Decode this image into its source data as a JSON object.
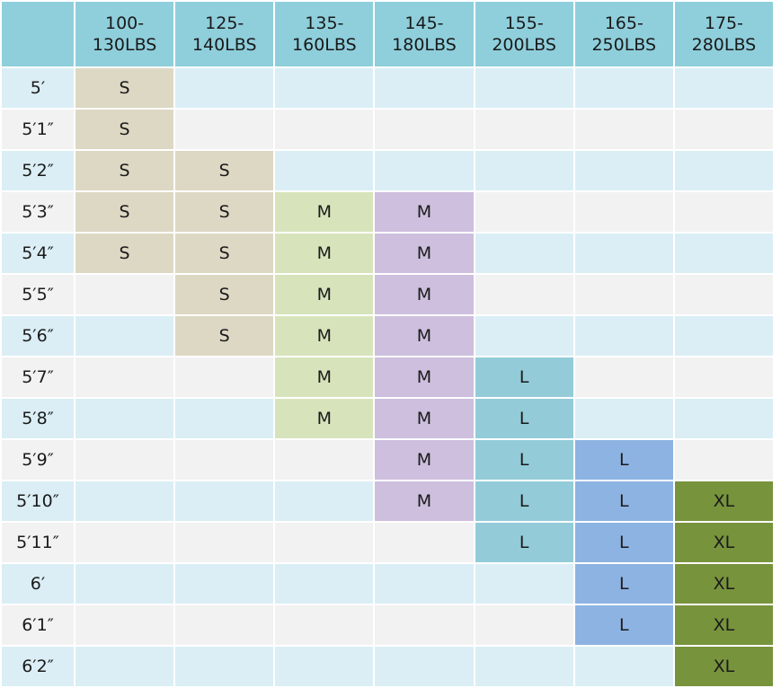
{
  "table": {
    "columns": [
      {
        "top": "100-",
        "bottom": "130LBS"
      },
      {
        "top": "125-",
        "bottom": "140LBS"
      },
      {
        "top": "135-",
        "bottom": "160LBS"
      },
      {
        "top": "145-",
        "bottom": "180LBS"
      },
      {
        "top": "155-",
        "bottom": "200LBS"
      },
      {
        "top": "165-",
        "bottom": "250LBS"
      },
      {
        "top": "175-",
        "bottom": "280LBS"
      }
    ],
    "rows": [
      {
        "height": "5′",
        "cells": [
          "S",
          "",
          "",
          "",
          "",
          "",
          ""
        ]
      },
      {
        "height": "5′1″",
        "cells": [
          "S",
          "",
          "",
          "",
          "",
          "",
          ""
        ]
      },
      {
        "height": "5′2″",
        "cells": [
          "S",
          "S",
          "",
          "",
          "",
          "",
          ""
        ]
      },
      {
        "height": "5′3″",
        "cells": [
          "S",
          "S",
          "M",
          "M",
          "",
          "",
          ""
        ]
      },
      {
        "height": "5′4″",
        "cells": [
          "S",
          "S",
          "M",
          "M",
          "",
          "",
          ""
        ]
      },
      {
        "height": "5′5″",
        "cells": [
          "",
          "S",
          "M",
          "M",
          "",
          "",
          ""
        ]
      },
      {
        "height": "5′6″",
        "cells": [
          "",
          "S",
          "M",
          "M",
          "",
          "",
          ""
        ]
      },
      {
        "height": "5′7″",
        "cells": [
          "",
          "",
          "M",
          "M",
          "L",
          "",
          ""
        ]
      },
      {
        "height": "5′8″",
        "cells": [
          "",
          "",
          "M",
          "M",
          "L",
          "",
          ""
        ]
      },
      {
        "height": "5′9″",
        "cells": [
          "",
          "",
          "",
          "M",
          "L",
          "L",
          ""
        ]
      },
      {
        "height": "5′10″",
        "cells": [
          "",
          "",
          "",
          "M",
          "L",
          "L",
          "XL"
        ]
      },
      {
        "height": "5′11″",
        "cells": [
          "",
          "",
          "",
          "",
          "L",
          "L",
          "XL"
        ]
      },
      {
        "height": "6′",
        "cells": [
          "",
          "",
          "",
          "",
          "",
          "L",
          "XL"
        ]
      },
      {
        "height": "6′1″",
        "cells": [
          "",
          "",
          "",
          "",
          "",
          "L",
          "XL"
        ]
      },
      {
        "height": "6′2″",
        "cells": [
          "",
          "",
          "",
          "",
          "",
          "",
          "XL"
        ]
      }
    ]
  },
  "colors": {
    "header": "#8fcfdc",
    "row_odd": "#dbeef5",
    "row_even": "#f2f2f2",
    "S": "#ddd8c4",
    "M_col3": "#d7e4bb",
    "M_col4": "#cdbfdd",
    "L_col5": "#93ccd8",
    "L_col6": "#8db3e2",
    "XL": "#77933c"
  }
}
